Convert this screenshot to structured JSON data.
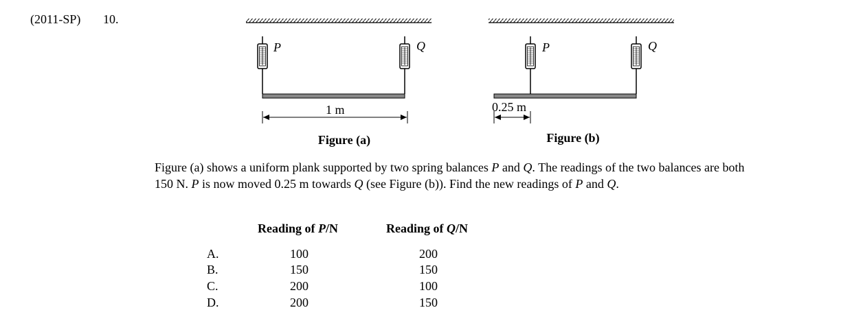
{
  "header": {
    "source": "(2011-SP)",
    "number": "10."
  },
  "figure_a": {
    "labels": {
      "p": "P",
      "q": "Q"
    },
    "dimension": "1 m",
    "caption": "Figure (a)"
  },
  "figure_b": {
    "labels": {
      "p": "P",
      "q": "Q"
    },
    "dimension": "0.25 m",
    "caption": "Figure (b)"
  },
  "question": {
    "seg1": "Figure (a) shows a uniform plank supported by two spring balances ",
    "p1": "P",
    "seg2": " and ",
    "q1": "Q",
    "seg3": ".  The readings of the two balances are both 150 N.  ",
    "p2": "P",
    "seg4": " is now moved  0.25 m towards  ",
    "q2": "Q",
    "seg5": " (see Figure (b)).  Find the new readings of ",
    "p3": "P",
    "seg6": " and ",
    "q3": "Q",
    "seg7": "."
  },
  "table": {
    "col_p": {
      "pre": "Reading of ",
      "var": "P",
      "post": "/N"
    },
    "col_q": {
      "pre": "Reading of ",
      "var": "Q",
      "post": "/N"
    },
    "options": [
      {
        "letter": "A.",
        "p": "100",
        "q": "200"
      },
      {
        "letter": "B.",
        "p": "150",
        "q": "150"
      },
      {
        "letter": "C.",
        "p": "200",
        "q": "100"
      },
      {
        "letter": "D.",
        "p": "200",
        "q": "150"
      }
    ]
  }
}
